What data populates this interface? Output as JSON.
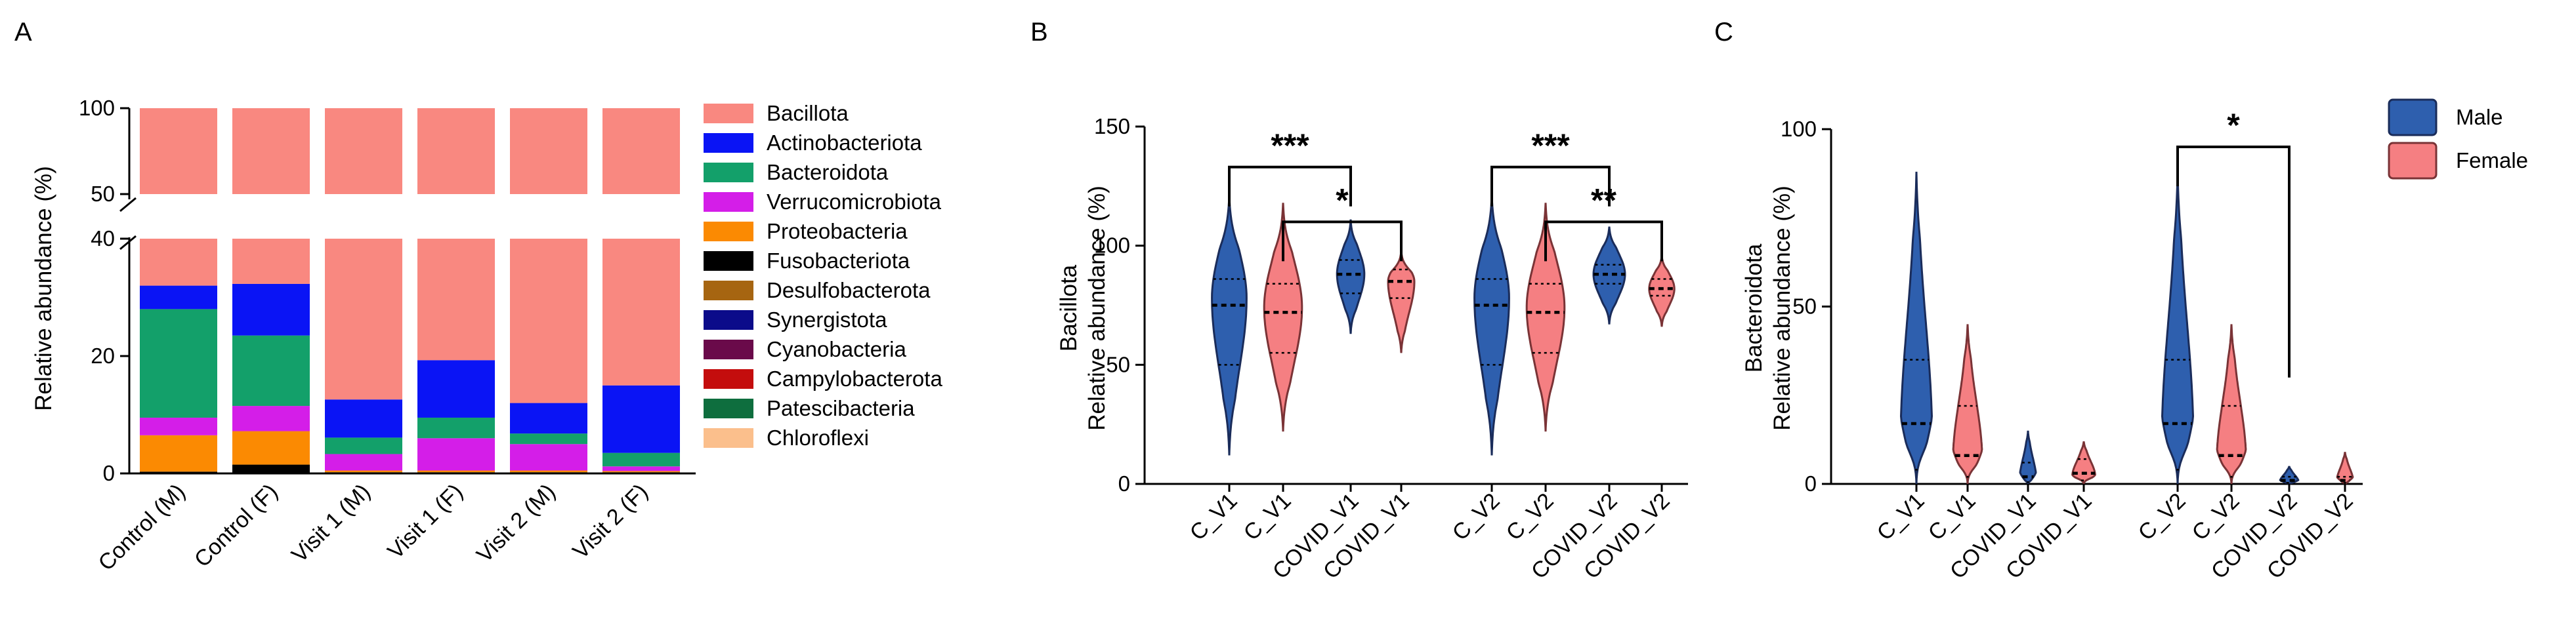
{
  "panels": {
    "a": "A",
    "b": "B",
    "c": "C"
  },
  "colors": {
    "Bacillota": "#f98880",
    "Actinobacteriota": "#0a14f5",
    "Bacteroidota": "#13a06a",
    "Verrucomicrobiota": "#d41ee8",
    "Proteobacteria": "#fb8a02",
    "Fusobacteriota": "#000000",
    "Desulfobacterota": "#a66511",
    "Synergistota": "#0b0b8a",
    "Cyanobacteria": "#6a0a4a",
    "Campylobacterota": "#c40d0d",
    "Patescibacteria": "#0e6e3e",
    "Chloroflexi": "#fbbf8c",
    "male": "#2e5fae",
    "female": "#f57f82"
  },
  "chart_data": [
    {
      "type": "bar",
      "stacked": true,
      "panel": "A",
      "ylabel": "Relative abundance (%)",
      "ylim": [
        0,
        100
      ],
      "axis_break": [
        40,
        50
      ],
      "yticks": [
        0,
        20,
        40,
        50,
        100
      ],
      "categories": [
        "Control (M)",
        "Control (F)",
        "Visit 1 (M)",
        "Visit 1 (F)",
        "Visit 2 (M)",
        "Visit 2 (F)"
      ],
      "legend": [
        "Bacillota",
        "Actinobacteriota",
        "Bacteroidota",
        "Verrucomicrobiota",
        "Proteobacteria",
        "Fusobacteriota",
        "Desulfobacterota",
        "Synergistota",
        "Cyanobacteria",
        "Campylobacterota",
        "Patescibacteria",
        "Chloroflexi"
      ],
      "series": [
        {
          "name": "Fusobacteriota",
          "values": [
            0.3,
            1.5,
            0.2,
            0.2,
            0.2,
            0.2
          ]
        },
        {
          "name": "Proteobacteria",
          "values": [
            6.2,
            5.7,
            0.3,
            0.3,
            0.3,
            0.2
          ]
        },
        {
          "name": "Verrucomicrobiota",
          "values": [
            3.0,
            4.3,
            2.8,
            5.5,
            4.5,
            0.8
          ]
        },
        {
          "name": "Bacteroidota",
          "values": [
            18.5,
            12.0,
            2.8,
            3.5,
            1.8,
            2.3
          ]
        },
        {
          "name": "Actinobacteriota",
          "values": [
            4.0,
            8.8,
            6.5,
            9.8,
            5.2,
            11.5
          ]
        },
        {
          "name": "Bacillota",
          "values": [
            68.0,
            67.7,
            87.4,
            80.7,
            88.0,
            85.0
          ]
        }
      ]
    },
    {
      "type": "violin",
      "panel": "B",
      "ylabel": "Bacillota",
      "ylabel2": "Relative abundance (%)",
      "ylim": [
        0,
        150
      ],
      "yticks": [
        0,
        50,
        100,
        150
      ],
      "categories": [
        "C_V1",
        "C_V1",
        "COVID_V1",
        "COVID_V1",
        "C_V2",
        "C_V2",
        "COVID_V2",
        "COVID_V2"
      ],
      "sex": [
        "male",
        "female",
        "male",
        "female",
        "male",
        "female",
        "male",
        "female"
      ],
      "median": [
        75,
        72,
        88,
        85,
        75,
        72,
        88,
        82
      ],
      "q1": [
        50,
        55,
        80,
        78,
        50,
        55,
        84,
        79
      ],
      "q3": [
        86,
        84,
        94,
        90,
        86,
        84,
        92,
        86
      ],
      "min": [
        12,
        22,
        63,
        55,
        12,
        22,
        67,
        66
      ],
      "max": [
        122,
        118,
        111,
        98,
        122,
        118,
        108,
        96
      ],
      "mode": [
        78,
        74,
        88,
        85,
        78,
        74,
        88,
        82
      ],
      "width": [
        0.33,
        0.36,
        0.26,
        0.25,
        0.33,
        0.36,
        0.3,
        0.24
      ],
      "significance": [
        {
          "from": 0,
          "to": 2,
          "label": "***",
          "y": 133
        },
        {
          "from": 1,
          "to": 3,
          "label": "*",
          "y": 110
        },
        {
          "from": 4,
          "to": 6,
          "label": "***",
          "y": 133
        },
        {
          "from": 5,
          "to": 7,
          "label": "**",
          "y": 110
        }
      ]
    },
    {
      "type": "violin",
      "panel": "C",
      "ylabel": "Bacteroidota",
      "ylabel2": "Relative abundance (%)",
      "ylim": [
        0,
        100
      ],
      "yticks": [
        0,
        50,
        100
      ],
      "categories": [
        "C_V1",
        "C_V1",
        "COVID_V1",
        "COVID_V1",
        "C_V2",
        "C_V2",
        "COVID_V2",
        "COVID_V2"
      ],
      "sex": [
        "male",
        "female",
        "male",
        "female",
        "male",
        "female",
        "male",
        "female"
      ],
      "median": [
        17,
        8,
        2,
        3,
        17,
        8,
        1,
        1
      ],
      "q1": [
        4,
        2,
        0.5,
        1,
        4,
        2,
        0.3,
        0.3
      ],
      "q3": [
        35,
        22,
        6,
        7,
        35,
        22,
        2,
        2
      ],
      "min": [
        0,
        0,
        0,
        0,
        0,
        0,
        0,
        0
      ],
      "max": [
        88,
        45,
        15,
        12,
        88,
        45,
        5,
        9
      ],
      "mode": [
        12,
        6,
        1,
        2,
        12,
        6,
        0.5,
        0.5
      ],
      "width": [
        0.3,
        0.28,
        0.16,
        0.22,
        0.3,
        0.28,
        0.18,
        0.16
      ],
      "significance": [
        {
          "from": 4,
          "to": 6,
          "label": "*",
          "y": 95,
          "right_drop_to": 30
        }
      ]
    }
  ],
  "legend_c": {
    "male": "Male",
    "female": "Female"
  }
}
